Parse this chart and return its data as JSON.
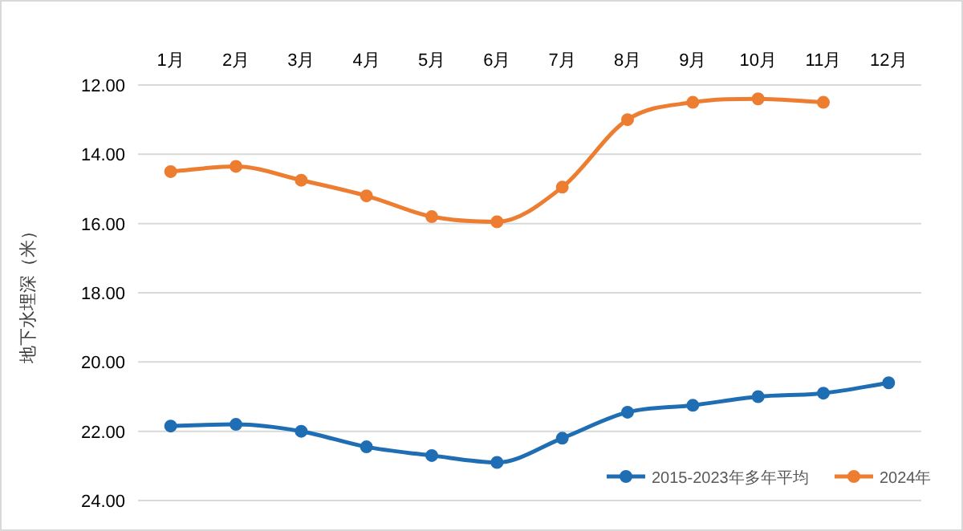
{
  "chart_data": {
    "type": "line",
    "ylabel": "地下水埋深（米）",
    "categories": [
      "1月",
      "2月",
      "3月",
      "4月",
      "5月",
      "6月",
      "7月",
      "8月",
      "9月",
      "10月",
      "11月",
      "12月"
    ],
    "ylim": [
      24,
      12
    ],
    "yticks": [
      {
        "value": 12,
        "label": "12.00"
      },
      {
        "value": 14,
        "label": "14.00"
      },
      {
        "value": 16,
        "label": "16.00"
      },
      {
        "value": 18,
        "label": "18.00"
      },
      {
        "value": 20,
        "label": "20.00"
      },
      {
        "value": 22,
        "label": "22.00"
      },
      {
        "value": 24,
        "label": "24.00"
      }
    ],
    "grid": "y",
    "legend": "bottom right",
    "marker": "circle",
    "line_style": "solid",
    "series": [
      {
        "name": "2015-2023年多年平均",
        "color": "#1f6eb4",
        "values": [
          21.85,
          21.8,
          22.0,
          22.45,
          22.7,
          22.9,
          22.2,
          21.45,
          21.25,
          21.0,
          20.9,
          20.6
        ]
      },
      {
        "name": "2024年",
        "color": "#ed7d31",
        "values": [
          14.5,
          14.35,
          14.75,
          15.2,
          15.8,
          15.95,
          14.95,
          13.0,
          12.5,
          12.4,
          12.5,
          null
        ]
      }
    ]
  }
}
